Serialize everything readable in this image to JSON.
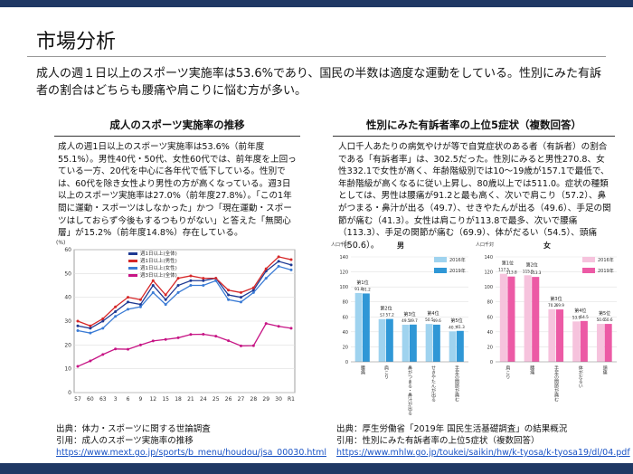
{
  "header": {
    "title": "市場分析"
  },
  "lead": "成人の週１日以上のスポーツ実施率は53.6%であり、国民の半数は適度な運動をしている。性別にみた有訴者の割合はどちらも腰痛や肩こりに悩む方が多い。",
  "sections": [
    {
      "heading": "成人のスポーツ実施率の推移",
      "body": "成人の週1日以上のスポーツ実施率は53.6%（前年度55.1%）。男性40代・50代、女性60代では、前年度を上回っている一方、20代を中心に各年代で低下している。性別では、60代を除き女性より男性の方が高くなっている。週3日以上のスポーツ実施率は27.0%（前年度27.8%）。「この1年間に運動・スポーツはしなかった」かつ「現在運動・スポーツはしておらず今後もするつもりがない」と答えた「無関心層」が15.2%（前年度14.8%）存在している。",
      "source": "出典：体力・スポーツに関する世論調査",
      "citation": "引用：成人のスポーツ実施率の推移",
      "url": "https://www.mext.go.jp/sports/b_menu/houdou/jsa_00030.html"
    },
    {
      "heading": "性別にみた有訴者率の上位5症状（複数回答）",
      "body": "人口千人あたりの病気やけが等で自覚症状のある者（有訴者）の割合である「有訴者率」は、302.5だった。性別にみると男性270.8、女性332.1で女性が高く、年齢階級別では10～19歳が157.1で最低で、年齢階級が高くなるに従い上昇し、80歳以上では511.0。症状の種類としては、男性は腰痛が91.2と最も高く、次いで肩こり（57.2）、鼻がつまる・鼻汁が出る（49.7）、せきやたんが出る（49.6）、手足の関節が痛む（41.3）。女性は肩こりが113.8で最多、次いで腰痛（113.3）、手足の関節が痛む（69.9）、体がだるい（54.5）、頭痛（50.6）。",
      "source": "出典：厚生労働省「2019年 国民生活基礎調査」の結果概況",
      "citation": "引用：性別にみた有訴者率の上位5症状（複数回答）",
      "url": "https://www.mhlw.go.jp/toukei/saikin/hw/k-tyosa/k-tyosa19/dl/04.pdf"
    }
  ],
  "chart_data": [
    {
      "type": "line",
      "ylabel": "(%)",
      "categories": [
        "57",
        "60",
        "63",
        "3",
        "6",
        "9",
        "12",
        "15",
        "18",
        "21",
        "24",
        "25",
        "26",
        "27",
        "28",
        "29",
        "30",
        "R1"
      ],
      "ylim": [
        0,
        60
      ],
      "yticks": [
        0,
        10,
        20,
        30,
        40,
        50,
        60
      ],
      "grid": true,
      "series": [
        {
          "name": "週1日以上(全体)",
          "color": "#1f3a93",
          "values": [
            28,
            27,
            30,
            34,
            38,
            37,
            45,
            39,
            45,
            47,
            47,
            48,
            41,
            40,
            43,
            51,
            55.1,
            53.6
          ]
        },
        {
          "name": "週1日以上(男性)",
          "color": "#d62728",
          "values": [
            30,
            28,
            31,
            36,
            40,
            39,
            47,
            41,
            48,
            49,
            48,
            48,
            43,
            42,
            44,
            52,
            57,
            55.8
          ]
        },
        {
          "name": "週1日以上(女性)",
          "color": "#3a7bd5",
          "values": [
            26,
            25,
            27,
            32,
            35,
            36,
            42,
            37,
            42,
            45,
            45,
            47,
            39,
            38,
            42,
            48,
            53,
            51.5
          ]
        },
        {
          "name": "週3日以上(全体)",
          "color": "#c71585",
          "values": [
            11,
            13.3,
            16,
            18.3,
            18.2,
            20,
            21.7,
            22.3,
            23,
            24.4,
            24.5,
            23.7,
            21.8,
            19.6,
            19.7,
            29,
            27.8,
            27.0
          ]
        }
      ]
    },
    {
      "type": "bar",
      "title": "男",
      "ylabel": "人口千対",
      "categories": [
        "腰痛",
        "肩こり",
        "鼻がつまる・鼻汁が出る",
        "せきやたんが出る",
        "手足の関節が痛む"
      ],
      "rank_labels": [
        "第1位",
        "第2位",
        "第3位",
        "第4位",
        "第5位"
      ],
      "ylim": [
        0,
        140
      ],
      "yticks": [
        0,
        20,
        40,
        60,
        80,
        100,
        120,
        140
      ],
      "grid": true,
      "series": [
        {
          "name": "2016年",
          "color": "#9fd3ef",
          "values": [
            91.8,
            57.0,
            49.5,
            50.5,
            40.7
          ]
        },
        {
          "name": "2019年",
          "color": "#2f97d6",
          "values": [
            91.2,
            57.2,
            49.7,
            49.6,
            41.3
          ]
        }
      ]
    },
    {
      "type": "bar",
      "title": "女",
      "ylabel": "人口千対",
      "categories": [
        "肩こり",
        "腰痛",
        "手足の関節が痛む",
        "体がだるい",
        "頭痛"
      ],
      "rank_labels": [
        "第1位",
        "第2位",
        "第3位",
        "第4位",
        "第5位"
      ],
      "ylim": [
        0,
        140
      ],
      "yticks": [
        0,
        20,
        40,
        60,
        80,
        100,
        120,
        140
      ],
      "grid": true,
      "series": [
        {
          "name": "2016年",
          "color": "#f6c3dd",
          "values": [
            117.5,
            115.5,
            70.2,
            53.9,
            50.6
          ]
        },
        {
          "name": "2019年",
          "color": "#ec5aa5",
          "values": [
            113.8,
            113.3,
            69.9,
            54.5,
            50.6
          ]
        }
      ]
    }
  ]
}
